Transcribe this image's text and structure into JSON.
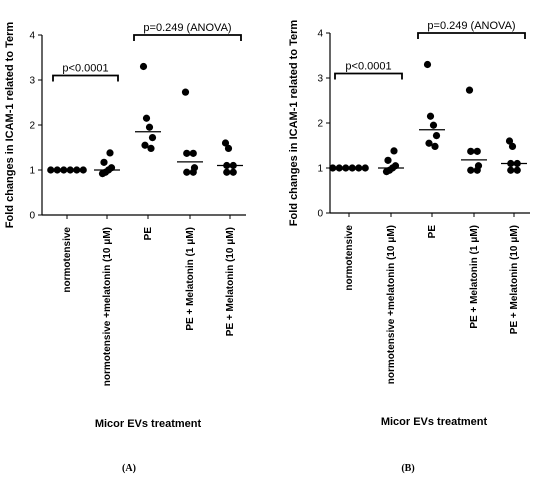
{
  "chart_data": [
    {
      "type": "scatter",
      "panel_label": "(A)",
      "ylabel": "Fold changes in ICAM-1 related to Term",
      "xlabel": "Micor EVs treatment",
      "ylim": [
        0,
        4
      ],
      "yticks": [
        "0",
        "1",
        "2",
        "3",
        "4"
      ],
      "grid": false,
      "categories": [
        "normotensive",
        "normotensive +melatonin (10 μM)",
        "PE",
        "PE + Melatonin (1 μM)",
        "PE + Melatonin (10 μM)"
      ],
      "points": [
        [
          1.0,
          1.0,
          1.0,
          1.0,
          1.0,
          1.0
        ],
        [
          0.92,
          0.95,
          1.0,
          1.05,
          1.17,
          1.38
        ],
        [
          3.3,
          2.15,
          1.95,
          1.72,
          1.55,
          1.48
        ],
        [
          2.73,
          1.37,
          1.37,
          1.05,
          0.95,
          0.95
        ],
        [
          1.6,
          1.48,
          1.1,
          1.1,
          0.95,
          0.95
        ]
      ],
      "medians": [
        1.0,
        1.0,
        1.85,
        1.18,
        1.1
      ],
      "annotations": [
        {
          "text": "p<0.0001",
          "from": 0,
          "to": 1,
          "y": 3.1
        },
        {
          "text": "p=0.249 (ANOVA)",
          "from": 2,
          "to": 4,
          "y": 4.0
        }
      ]
    },
    {
      "type": "scatter",
      "panel_label": "(B)",
      "ylabel": "Fold changes in ICAM-1 related to Term",
      "xlabel": "Micor EVs treatment",
      "ylim": [
        0,
        4
      ],
      "yticks": [
        "0",
        "1",
        "2",
        "3",
        "4"
      ],
      "grid": false,
      "categories": [
        "normotensive",
        "normotensive +melatonin (10 μM)",
        "PE",
        "PE + Melatonin (1 μM)",
        "PE + Melatonin (10 μM)"
      ],
      "points": [
        [
          1.0,
          1.0,
          1.0,
          1.0,
          1.0,
          1.0
        ],
        [
          0.92,
          0.95,
          1.0,
          1.05,
          1.17,
          1.38
        ],
        [
          3.3,
          2.15,
          1.95,
          1.72,
          1.55,
          1.48
        ],
        [
          2.73,
          1.37,
          1.37,
          1.05,
          0.95,
          0.95
        ],
        [
          1.6,
          1.48,
          1.1,
          1.1,
          0.95,
          0.95
        ]
      ],
      "medians": [
        1.0,
        1.0,
        1.85,
        1.18,
        1.1
      ],
      "annotations": [
        {
          "text": "p<0.0001",
          "from": 0,
          "to": 1,
          "y": 3.1
        },
        {
          "text": "p=0.249 (ANOVA)",
          "from": 2,
          "to": 4,
          "y": 4.0
        }
      ]
    }
  ]
}
